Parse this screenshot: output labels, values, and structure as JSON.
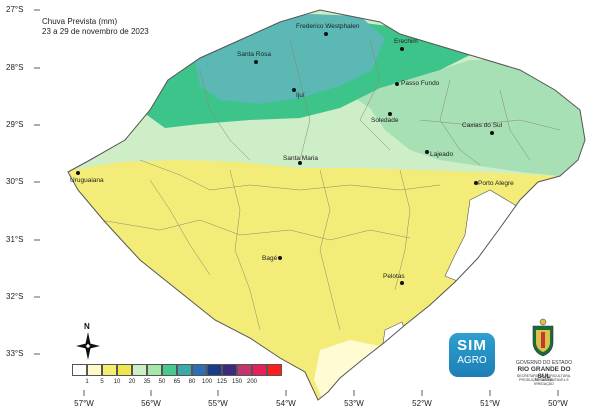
{
  "title": {
    "line1": "Chuva Prevista (mm)",
    "line2": "23 a 29 de novembro de 2023"
  },
  "lat_labels": [
    "27°S",
    "28°S",
    "29°S",
    "30°S",
    "31°S",
    "32°S",
    "33°S"
  ],
  "lon_labels": [
    "57°W",
    "56°W",
    "55°W",
    "54°W",
    "53°W",
    "52°W",
    "51°W",
    "50°W"
  ],
  "cities": [
    "Frederico Westphalen",
    "Erechim",
    "Santa Rosa",
    "Passo Fundo",
    "Ijuí",
    "Soledade",
    "Caxias do Sul",
    "Lajeado",
    "Santa Maria",
    "Uruguaiana",
    "Porto Alegre",
    "Bagé",
    "Pelotas"
  ],
  "legend": {
    "labels": [
      "1",
      "5",
      "10",
      "20",
      "35",
      "50",
      "65",
      "80",
      "100",
      "125",
      "150",
      "200"
    ],
    "colors": [
      "#ffffff",
      "#fffac8",
      "#f5ee6e",
      "#f0e74e",
      "#ccf0c4",
      "#a6e6a8",
      "#47c98c",
      "#3aa9a8",
      "#2b6fb5",
      "#1b3a8a",
      "#3b2b7a",
      "#c4356f",
      "#e8205a",
      "#ff1e1e"
    ]
  },
  "north_label": "N",
  "logo": {
    "line1": "SIM",
    "line2": "AGRO"
  },
  "government": {
    "line1": "GOVERNO DO ESTADO",
    "line2": "RIO GRANDE DO SUL",
    "line3": "SECRETARIA DA AGRICULTURA, PECUÁRIA,",
    "line4": "PRODUÇÃO SUSTENTÁVEL E IRRIGAÇÃO"
  },
  "zone_colors": {
    "ocean": "#ffffff",
    "yellow": "#f3ec78",
    "pale_yellow": "#fffbd2",
    "light_green": "#cdeec6",
    "mid_green": "#a6e0b4",
    "green": "#3cc48a",
    "teal": "#5bb8b4",
    "border": "#555555"
  }
}
